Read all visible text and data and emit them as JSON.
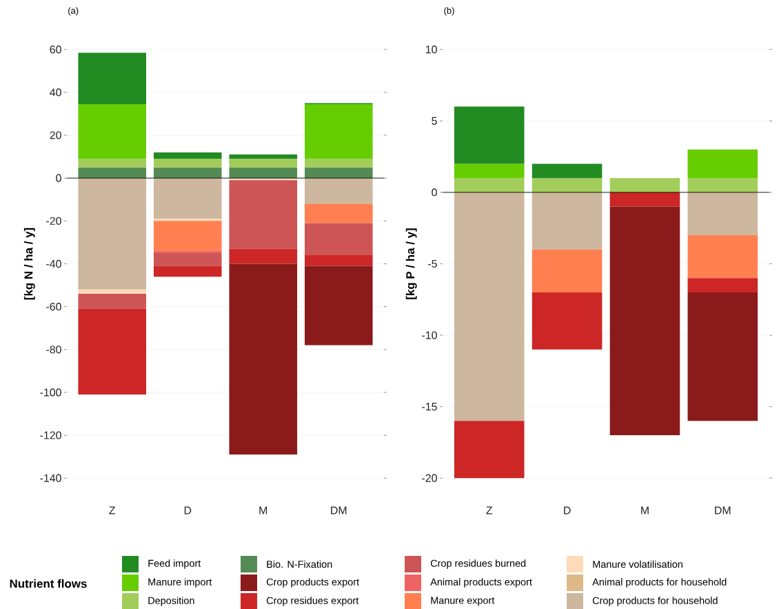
{
  "chart_data": [
    {
      "type": "bar",
      "stacked": true,
      "title": "(a)",
      "ylabel": "[kg N / ha / y]",
      "legend_title": "Nutrient flows",
      "legend": "bottom",
      "grid": "y",
      "categories": [
        "Z",
        "D",
        "M",
        "DM"
      ],
      "ylim": [
        -140,
        60
      ],
      "yticks": [
        -140,
        -120,
        -100,
        -80,
        -60,
        -40,
        -20,
        0,
        20,
        40,
        60
      ],
      "ref_lines": [
        {
          "axis": "y",
          "value": 0,
          "color": "#000000"
        }
      ],
      "series": [
        {
          "name": "Crop products for household",
          "color": "#cdb79e",
          "values": [
            -52,
            -19,
            null,
            -12
          ]
        },
        {
          "name": "Animal products for household",
          "color": "#deb887",
          "values": [
            null,
            null,
            null,
            null
          ]
        },
        {
          "name": "Manure volatilisation",
          "color": "#ffdab9",
          "values": [
            -2,
            -1,
            -1,
            null
          ]
        },
        {
          "name": "Manure export",
          "color": "#ff7f50",
          "values": [
            null,
            -14,
            null,
            -9
          ]
        },
        {
          "name": "Animal products export",
          "color": "#ee6363",
          "values": [
            null,
            -1,
            null,
            null
          ]
        },
        {
          "name": "Crop residues burned",
          "color": "#cd5555",
          "values": [
            -7,
            -6,
            -32,
            -15
          ]
        },
        {
          "name": "Crop residues export",
          "color": "#cd2626",
          "values": [
            -40,
            -5,
            -7,
            -5
          ]
        },
        {
          "name": "Crop products export",
          "color": "#8b1a1a",
          "values": [
            null,
            null,
            -89,
            -37
          ]
        },
        {
          "name": "Bio. N-Fixation",
          "color": "#548b54",
          "values": [
            5,
            5,
            5,
            5
          ]
        },
        {
          "name": "Deposition",
          "color": "#a2cd5a",
          "values": [
            4,
            4,
            4,
            4
          ]
        },
        {
          "name": "Manure import",
          "color": "#66cd00",
          "values": [
            25.5,
            null,
            null,
            25.5
          ]
        },
        {
          "name": "Feed import",
          "color": "#228b22",
          "values": [
            24,
            3,
            2,
            0.5
          ]
        }
      ]
    },
    {
      "type": "bar",
      "stacked": true,
      "title": "(b)",
      "ylabel": "[kg P / ha / y]",
      "grid": "y",
      "categories": [
        "Z",
        "D",
        "M",
        "DM"
      ],
      "ylim": [
        -20,
        10
      ],
      "yticks": [
        -20,
        -15,
        -10,
        -5,
        0,
        5,
        10
      ],
      "ref_lines": [
        {
          "axis": "y",
          "value": 0,
          "color": "#000000"
        }
      ],
      "series": [
        {
          "color": "#cdb79e",
          "values": [
            -16,
            -4,
            null,
            -3
          ]
        },
        {
          "color": "#ff7f50",
          "values": [
            null,
            -3,
            null,
            -3
          ]
        },
        {
          "color": "#cd2626",
          "values": [
            -4,
            -4,
            -1,
            -1
          ]
        },
        {
          "color": "#8b1a1a",
          "values": [
            null,
            null,
            -16,
            -9
          ]
        },
        {
          "color": "#a2cd5a",
          "values": [
            1,
            1,
            1,
            1
          ]
        },
        {
          "color": "#66cd00",
          "values": [
            1,
            null,
            null,
            2
          ]
        },
        {
          "color": "#228b22",
          "values": [
            4,
            1,
            null,
            null
          ]
        }
      ]
    }
  ]
}
